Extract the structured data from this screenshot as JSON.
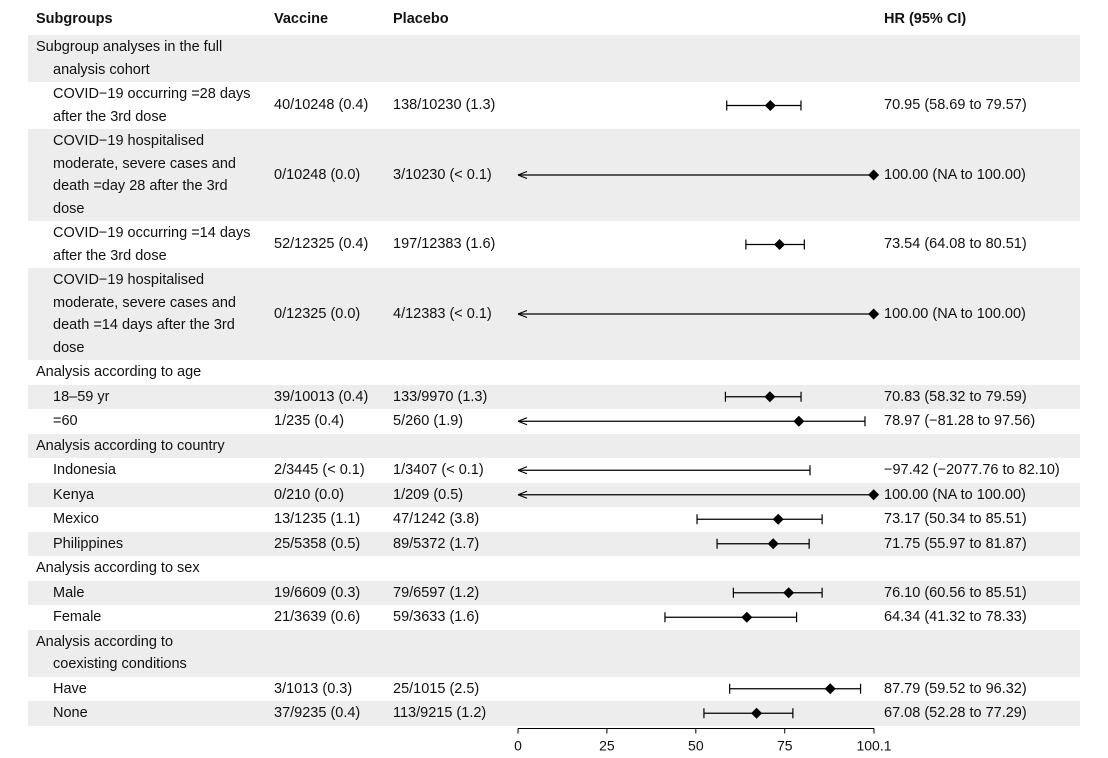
{
  "headers": {
    "subgroups": "Subgroups",
    "vaccine": "Vaccine",
    "placebo": "Placebo",
    "hr": "HR (95% CI)"
  },
  "colors": {
    "band": "#ededed",
    "marker": "#000000"
  },
  "chart_data": {
    "type": "forest",
    "xlim": [
      0,
      100.1
    ],
    "xticks": [
      "0",
      "25",
      "50",
      "75",
      "100.1"
    ],
    "xtick_values": [
      0,
      25,
      50,
      75,
      100.1
    ],
    "rows": [
      {
        "label": [
          "Subgroup analyses in the full",
          "analysis cohort"
        ],
        "header": true,
        "band": true
      },
      {
        "label": [
          "COVID−19 occurring =28 days",
          "after the 3rd dose"
        ],
        "vaccine": "40/10248 (0.4)",
        "placebo": "138/10230 (1.3)",
        "hr_text": "70.95 (58.69 to 79.57)",
        "hr": 70.95,
        "lo": 58.69,
        "hi": 79.57
      },
      {
        "label": [
          "COVID−19 hospitalised",
          "moderate, severe cases and",
          "death =day 28 after the 3rd",
          "dose"
        ],
        "band": true,
        "vaccine": "0/10248 (0.0)",
        "placebo": "3/10230 (< 0.1)",
        "hr_text": "100.00 (NA to 100.00)",
        "hr": 100.0,
        "hi": 100.0,
        "arrow_left": true
      },
      {
        "label": [
          "COVID−19 occurring =14 days",
          "after the 3rd dose"
        ],
        "vaccine": "52/12325 (0.4)",
        "placebo": "197/12383 (1.6)",
        "hr_text": "73.54 (64.08 to 80.51)",
        "hr": 73.54,
        "lo": 64.08,
        "hi": 80.51
      },
      {
        "label": [
          "COVID−19 hospitalised",
          "moderate, severe cases and",
          "death =14 days after the 3rd",
          "dose"
        ],
        "band": true,
        "vaccine": "0/12325 (0.0)",
        "placebo": "4/12383 (< 0.1)",
        "hr_text": "100.00 (NA to 100.00)",
        "hr": 100.0,
        "hi": 100.0,
        "arrow_left": true
      },
      {
        "label": [
          "Analysis according to age"
        ],
        "header": true
      },
      {
        "label": [
          "18–59 yr"
        ],
        "band": true,
        "vaccine": "39/10013 (0.4)",
        "placebo": "133/9970 (1.3)",
        "hr_text": "70.83 (58.32 to 79.59)",
        "hr": 70.83,
        "lo": 58.32,
        "hi": 79.59
      },
      {
        "label": [
          "=60"
        ],
        "vaccine": "1/235 (0.4)",
        "placebo": "5/260 (1.9)",
        "hr_text": "78.97 (−81.28 to 97.56)",
        "hr": 78.97,
        "hi": 97.56,
        "arrow_left": true
      },
      {
        "label": [
          "Analysis according to country"
        ],
        "header": true,
        "band": true
      },
      {
        "label": [
          "Indonesia"
        ],
        "vaccine": "2/3445 (< 0.1)",
        "placebo": "1/3407 (< 0.1)",
        "hr_text": "−97.42 (−2077.76 to 82.10)",
        "hi": 82.1,
        "arrow_left": true
      },
      {
        "label": [
          "Kenya"
        ],
        "band": true,
        "vaccine": "0/210 (0.0)",
        "placebo": "1/209 (0.5)",
        "hr_text": "100.00 (NA to 100.00)",
        "hr": 100.0,
        "hi": 100.0,
        "arrow_left": true
      },
      {
        "label": [
          "Mexico"
        ],
        "vaccine": "13/1235 (1.1)",
        "placebo": "47/1242 (3.8)",
        "hr_text": "73.17 (50.34 to 85.51)",
        "hr": 73.17,
        "lo": 50.34,
        "hi": 85.51
      },
      {
        "label": [
          "Philippines"
        ],
        "band": true,
        "vaccine": "25/5358 (0.5)",
        "placebo": "89/5372 (1.7)",
        "hr_text": "71.75 (55.97 to 81.87)",
        "hr": 71.75,
        "lo": 55.97,
        "hi": 81.87
      },
      {
        "label": [
          "Analysis according to sex"
        ],
        "header": true
      },
      {
        "label": [
          "Male"
        ],
        "band": true,
        "vaccine": "19/6609 (0.3)",
        "placebo": "79/6597 (1.2)",
        "hr_text": "76.10 (60.56 to 85.51)",
        "hr": 76.1,
        "lo": 60.56,
        "hi": 85.51
      },
      {
        "label": [
          "Female"
        ],
        "vaccine": "21/3639 (0.6)",
        "placebo": "59/3633 (1.6)",
        "hr_text": "64.34 (41.32 to 78.33)",
        "hr": 64.34,
        "lo": 41.32,
        "hi": 78.33
      },
      {
        "label": [
          "Analysis according to",
          "coexisting conditions"
        ],
        "header": true,
        "band": true
      },
      {
        "label": [
          "Have"
        ],
        "vaccine": "3/1013 (0.3)",
        "placebo": "25/1015 (2.5)",
        "hr_text": "87.79 (59.52 to 96.32)",
        "hr": 87.79,
        "lo": 59.52,
        "hi": 96.32
      },
      {
        "label": [
          "None"
        ],
        "band": true,
        "vaccine": "37/9235 (0.4)",
        "placebo": "113/9215 (1.2)",
        "hr_text": "67.08 (52.28 to 77.29)",
        "hr": 67.08,
        "lo": 52.28,
        "hi": 77.29
      }
    ]
  }
}
